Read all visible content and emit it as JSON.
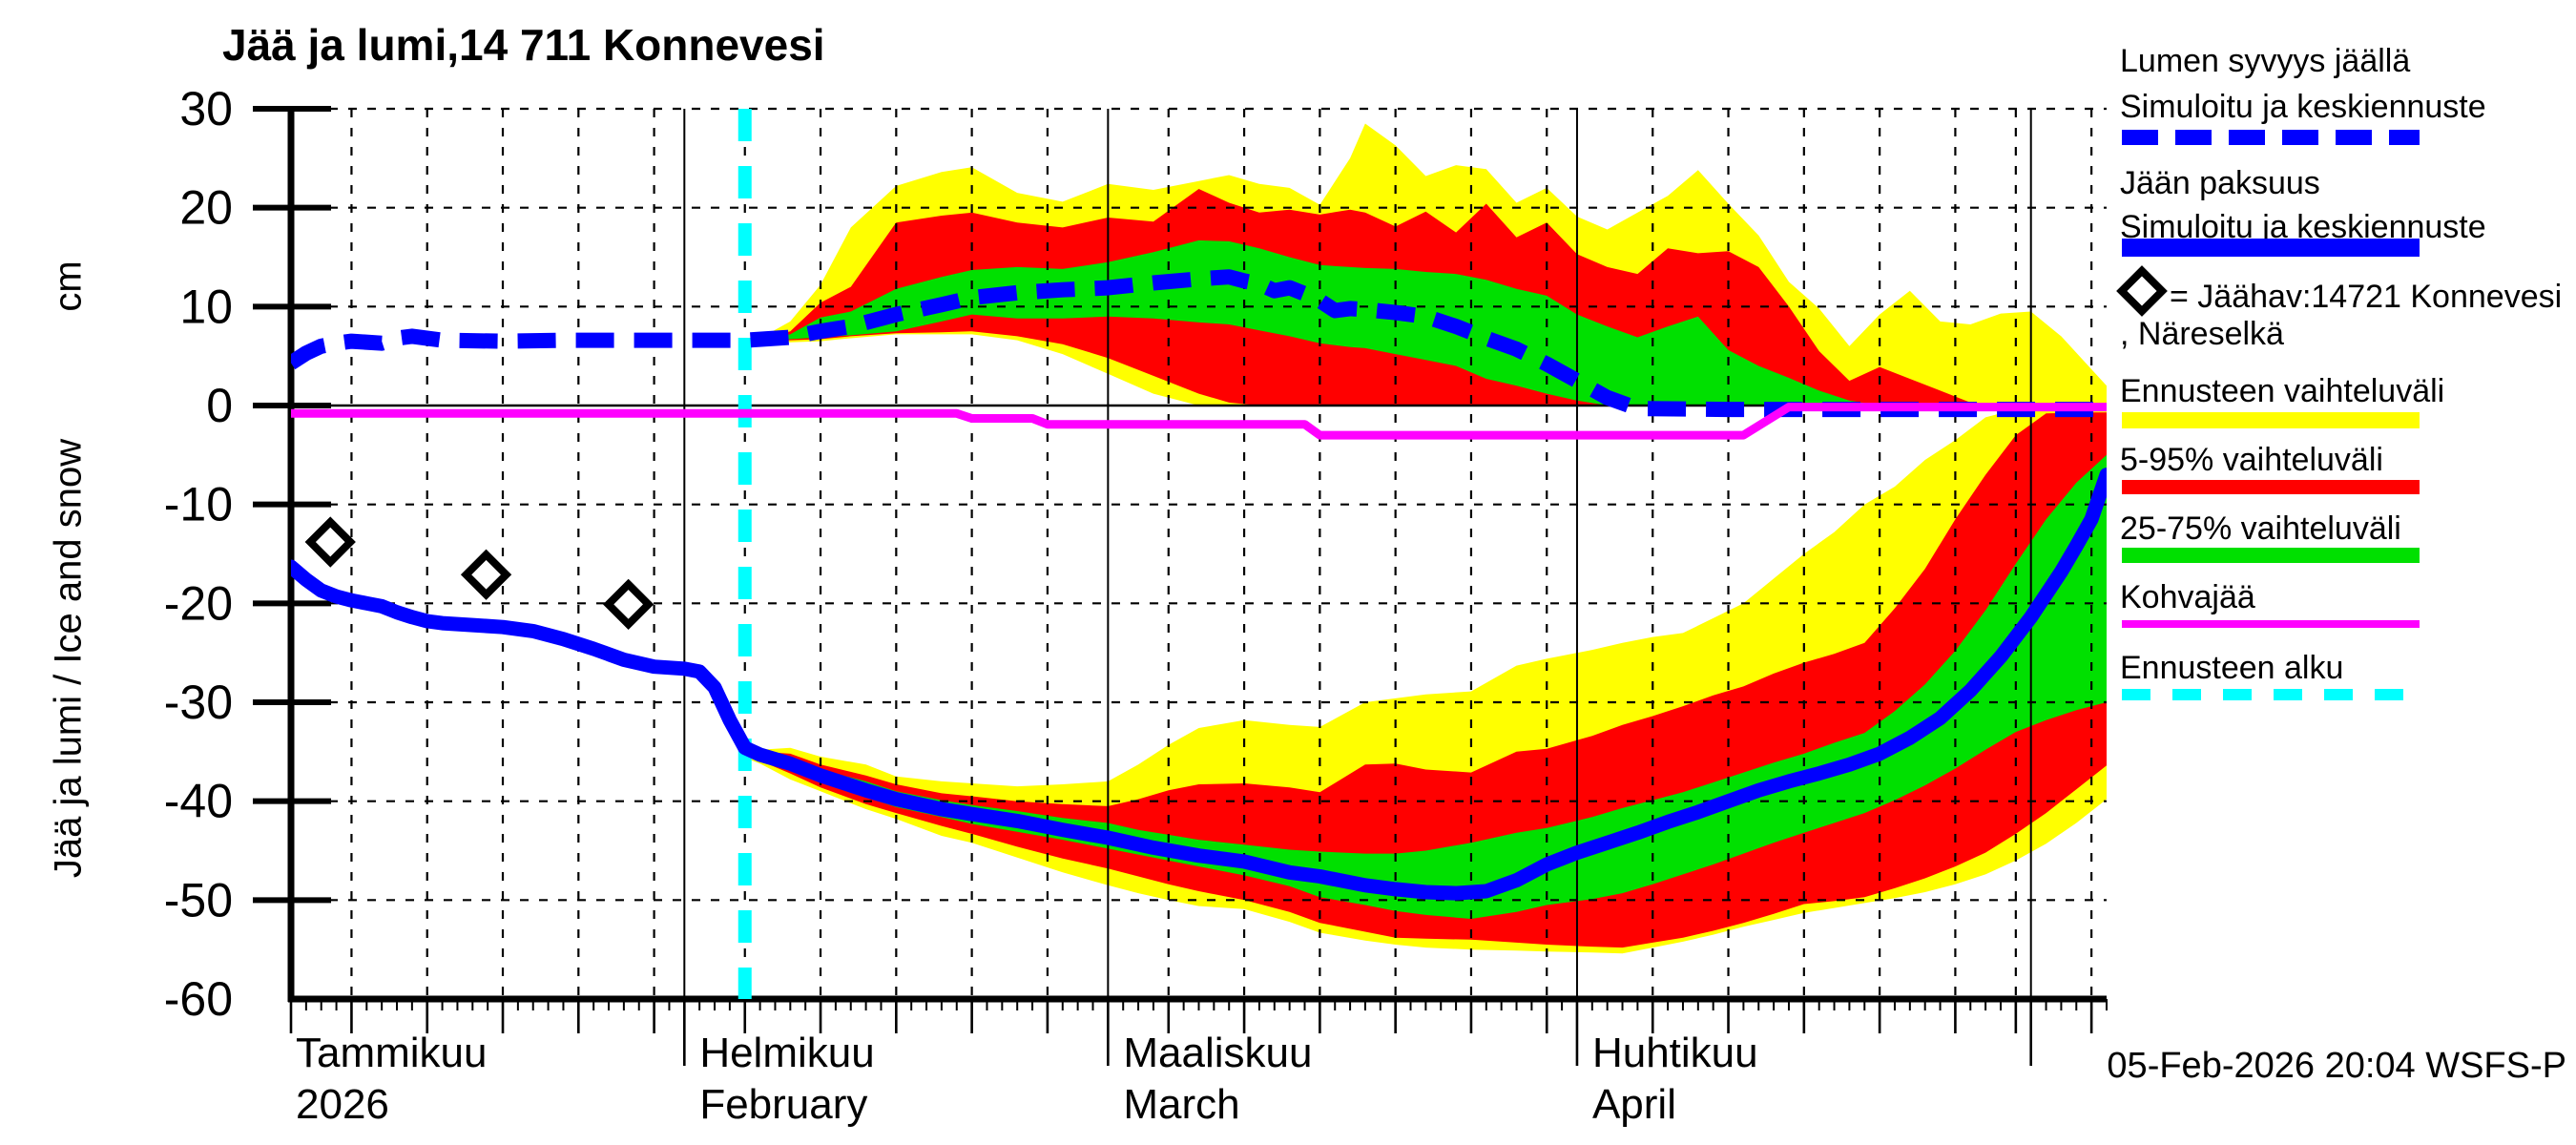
{
  "title": "Jää ja lumi,14 711 Konnevesi",
  "timestamp": "05-Feb-2026 20:04 WSFS-P",
  "y_axis": {
    "label_main": "Jää ja lumi / Ice and snow",
    "label_unit": "cm",
    "ticks": [
      30,
      20,
      10,
      0,
      -10,
      -20,
      -30,
      -40,
      -50,
      -60
    ]
  },
  "x_axis": {
    "months": [
      {
        "name": "Tammikuu",
        "sub": "2026",
        "day": 0.3
      },
      {
        "name": "Helmikuu",
        "sub": "February",
        "day": 26
      },
      {
        "name": "Maaliskuu",
        "sub": "March",
        "day": 54
      },
      {
        "name": "Huhtikuu",
        "sub": "April",
        "day": 85
      }
    ]
  },
  "legend": {
    "items": [
      {
        "line1": "Lumen syvyys jäällä",
        "line2": "Simuloitu ja keskiennuste",
        "swatch": "blue-dashed"
      },
      {
        "line1": "Jään paksuus",
        "line2": "Simuloitu ja keskiennuste",
        "swatch": "blue-solid"
      },
      {
        "line1": "= Jäähav:14721 Konnevesi",
        "line2": ", Näreselkä",
        "swatch": "diamond"
      },
      {
        "line1": "Ennusteen vaihteluväli",
        "swatch": "yellow"
      },
      {
        "line1": "5-95% vaihteluväli",
        "swatch": "red"
      },
      {
        "line1": "25-75% vaihteluväli",
        "swatch": "green"
      },
      {
        "line1": "Kohvajää",
        "swatch": "magenta"
      },
      {
        "line1": "Ennusteen alku",
        "swatch": "cyan-dashed"
      }
    ]
  },
  "chart_data": {
    "type": "area",
    "subtype": "ensemble-fan-with-lines",
    "x_unit": "days since 06-Jan-2026 (day 30 = 05-Feb-2026 forecast start, day 120 = 06-May-2026)",
    "ylabel": "Jää ja lumi / Ice and snow (cm)",
    "ylim": [
      -60,
      30
    ],
    "forecast_start_day": 30,
    "colors": {
      "median": "#0000ff",
      "range": "#ffff00",
      "p5_95": "#ff0000",
      "p25_75": "#00e000",
      "kohvajaa": "#ff00ff",
      "forecast_start": "#00ffff",
      "axis": "#000000"
    },
    "grid": {
      "dashed_vertical_days": [
        4,
        9,
        14,
        19,
        24,
        30,
        35,
        40,
        45,
        50,
        58,
        63,
        68,
        73,
        78,
        83,
        90,
        95,
        100,
        105,
        110,
        114,
        119
      ],
      "month_vertical_days": [
        26,
        54,
        85,
        115
      ],
      "dashed_horizontal_values": [
        30,
        20,
        10,
        -10,
        -20,
        -30,
        -40,
        -50
      ]
    },
    "series": {
      "snow_median": [
        [
          0,
          4.3
        ],
        [
          1,
          5.3
        ],
        [
          2,
          6.0
        ],
        [
          3,
          6.3
        ],
        [
          4,
          6.5
        ],
        [
          6,
          6.3
        ],
        [
          7,
          6.8
        ],
        [
          8,
          7.0
        ],
        [
          10,
          6.6
        ],
        [
          14,
          6.5
        ],
        [
          18,
          6.6
        ],
        [
          22,
          6.6
        ],
        [
          26,
          6.6
        ],
        [
          30,
          6.6
        ],
        [
          33,
          6.9
        ],
        [
          35,
          7.5
        ],
        [
          37,
          8.0
        ],
        [
          40,
          9.2
        ],
        [
          43,
          10.2
        ],
        [
          45,
          10.9
        ],
        [
          48,
          11.4
        ],
        [
          51,
          11.7
        ],
        [
          54,
          11.9
        ],
        [
          57,
          12.4
        ],
        [
          60,
          12.8
        ],
        [
          62,
          13.0
        ],
        [
          63,
          12.6
        ],
        [
          64,
          12.3
        ],
        [
          65,
          11.6
        ],
        [
          66,
          11.9
        ],
        [
          67,
          11.3
        ],
        [
          68,
          10.6
        ],
        [
          69,
          9.6
        ],
        [
          70,
          9.8
        ],
        [
          71,
          9.7
        ],
        [
          73,
          9.4
        ],
        [
          75,
          9.0
        ],
        [
          77,
          8.0
        ],
        [
          79,
          6.8
        ],
        [
          81,
          5.7
        ],
        [
          83,
          4.2
        ],
        [
          85,
          2.5
        ],
        [
          87,
          0.8
        ],
        [
          89,
          -0.3
        ],
        [
          95,
          -0.4
        ],
        [
          120,
          -0.4
        ]
      ],
      "ice_median": [
        [
          0,
          -16.3
        ],
        [
          1,
          -17.6
        ],
        [
          2,
          -18.7
        ],
        [
          3,
          -19.3
        ],
        [
          4,
          -19.7
        ],
        [
          5,
          -20.0
        ],
        [
          6,
          -20.3
        ],
        [
          7,
          -20.9
        ],
        [
          8,
          -21.4
        ],
        [
          9,
          -21.8
        ],
        [
          10,
          -22.0
        ],
        [
          12,
          -22.2
        ],
        [
          14,
          -22.4
        ],
        [
          16,
          -22.8
        ],
        [
          18,
          -23.6
        ],
        [
          20,
          -24.6
        ],
        [
          22,
          -25.7
        ],
        [
          24,
          -26.4
        ],
        [
          26,
          -26.6
        ],
        [
          27,
          -26.9
        ],
        [
          28,
          -28.5
        ],
        [
          29,
          -31.8
        ],
        [
          30,
          -34.6
        ],
        [
          31,
          -35.3
        ],
        [
          33,
          -36.2
        ],
        [
          35,
          -37.4
        ],
        [
          38,
          -38.9
        ],
        [
          40,
          -39.8
        ],
        [
          43,
          -40.8
        ],
        [
          45,
          -41.3
        ],
        [
          48,
          -42.0
        ],
        [
          51,
          -42.9
        ],
        [
          54,
          -43.7
        ],
        [
          57,
          -44.7
        ],
        [
          60,
          -45.5
        ],
        [
          63,
          -46.1
        ],
        [
          66,
          -47.2
        ],
        [
          68,
          -47.6
        ],
        [
          71,
          -48.5
        ],
        [
          73,
          -48.9
        ],
        [
          75,
          -49.2
        ],
        [
          77,
          -49.3
        ],
        [
          79,
          -49.1
        ],
        [
          81,
          -48.0
        ],
        [
          83,
          -46.4
        ],
        [
          85,
          -45.2
        ],
        [
          87,
          -44.2
        ],
        [
          89,
          -43.2
        ],
        [
          91,
          -42.1
        ],
        [
          93,
          -41.1
        ],
        [
          95,
          -40.0
        ],
        [
          97,
          -38.9
        ],
        [
          99,
          -38.0
        ],
        [
          101,
          -37.2
        ],
        [
          103,
          -36.3
        ],
        [
          105,
          -35.2
        ],
        [
          107,
          -33.6
        ],
        [
          109,
          -31.6
        ],
        [
          111,
          -28.8
        ],
        [
          113,
          -25.4
        ],
        [
          115,
          -21.4
        ],
        [
          117,
          -16.8
        ],
        [
          118,
          -14.2
        ],
        [
          119,
          -11.5
        ],
        [
          120,
          -7.0
        ]
      ],
      "kohvajaa": [
        [
          0,
          -0.8
        ],
        [
          44,
          -0.8
        ],
        [
          45,
          -1.3
        ],
        [
          49,
          -1.3
        ],
        [
          50,
          -1.9
        ],
        [
          67,
          -1.9
        ],
        [
          68,
          -3.0
        ],
        [
          96,
          -3.0
        ],
        [
          99,
          -0.15
        ],
        [
          120,
          -0.15
        ]
      ],
      "observations": [
        {
          "day": 2.6,
          "value": -13.8
        },
        {
          "day": 12.9,
          "value": -17.1
        },
        {
          "day": 22.3,
          "value": -20.1
        }
      ],
      "snow_band": {
        "days": [
          30,
          31,
          33,
          35,
          37,
          40,
          43,
          45,
          48,
          51,
          54,
          57,
          60,
          62,
          64,
          66,
          68,
          70,
          71,
          73,
          75,
          77,
          79,
          81,
          83,
          85,
          87,
          89,
          91,
          93,
          95,
          97,
          99,
          101,
          103,
          105,
          107,
          109,
          111,
          113,
          115,
          117,
          120
        ],
        "yellow_top": [
          6.6,
          6.8,
          8.5,
          12.2,
          18.0,
          22.2,
          23.6,
          24.1,
          21.5,
          20.6,
          22.4,
          21.8,
          22.7,
          23.3,
          22.4,
          22.0,
          20.3,
          25.0,
          28.5,
          26.3,
          23.2,
          24.3,
          23.9,
          20.5,
          22.0,
          19.1,
          17.8,
          19.5,
          21.2,
          23.8,
          20.4,
          17.2,
          12.5,
          9.8,
          6.0,
          9.2,
          11.6,
          8.5,
          8.2,
          9.3,
          9.5,
          7.0,
          2.0
        ],
        "red_top": [
          6.6,
          6.7,
          7.5,
          10.4,
          12.0,
          18.5,
          19.2,
          19.5,
          18.5,
          18.0,
          19.0,
          18.6,
          21.9,
          20.5,
          19.5,
          19.8,
          19.3,
          19.8,
          19.5,
          18.1,
          19.6,
          17.5,
          20.4,
          17.0,
          18.5,
          15.3,
          14.0,
          13.3,
          15.9,
          15.4,
          15.6,
          14.0,
          10.0,
          5.5,
          2.5,
          3.9,
          2.7,
          1.5,
          0.3,
          0,
          0,
          0,
          0
        ],
        "green_top": [
          6.6,
          6.7,
          7.2,
          8.9,
          9.5,
          11.8,
          13.0,
          13.7,
          14.0,
          13.8,
          14.5,
          15.5,
          16.7,
          16.6,
          15.9,
          15.0,
          14.2,
          14.0,
          13.9,
          13.8,
          13.5,
          13.3,
          12.7,
          11.8,
          11.1,
          9.2,
          8.0,
          6.9,
          8.0,
          9.0,
          5.6,
          4.0,
          2.8,
          1.5,
          0.5,
          0,
          0,
          0,
          0,
          0,
          0,
          0,
          0
        ],
        "green_bot": [
          6.6,
          6.5,
          6.7,
          6.9,
          7.1,
          7.5,
          8.5,
          9.2,
          8.8,
          8.8,
          9.0,
          8.8,
          8.4,
          8.2,
          7.6,
          7.0,
          6.3,
          5.9,
          5.8,
          5.2,
          4.6,
          4.0,
          2.7,
          2.0,
          1.2,
          0.5,
          0,
          0,
          0,
          0,
          0,
          0,
          0,
          0,
          0,
          0,
          0,
          0,
          0,
          0,
          0,
          0,
          0
        ],
        "red_bot": [
          6.5,
          6.4,
          6.6,
          6.7,
          7.0,
          7.3,
          7.4,
          7.5,
          7.0,
          6.2,
          4.8,
          3.0,
          1.2,
          0.3,
          0,
          0,
          0,
          0,
          0,
          0,
          0,
          0,
          0,
          0,
          0,
          0,
          0,
          0,
          0,
          0,
          0,
          0,
          0,
          0,
          0,
          0,
          0,
          0,
          0,
          0,
          0,
          0,
          0
        ],
        "yellow_bot": [
          6.5,
          6.3,
          6.4,
          6.5,
          6.8,
          7.2,
          7.2,
          7.2,
          6.6,
          5.2,
          3.2,
          1.2,
          0,
          0,
          0,
          0,
          0,
          0,
          0,
          0,
          0,
          0,
          0,
          0,
          0,
          0,
          0,
          0,
          0,
          0,
          0,
          0,
          0,
          0,
          0,
          0,
          0,
          0,
          0,
          0,
          0,
          0,
          0
        ]
      },
      "ice_band": {
        "days": [
          30,
          31,
          33,
          35,
          38,
          40,
          43,
          45,
          48,
          51,
          54,
          56,
          58,
          60,
          63,
          66,
          68,
          71,
          73,
          75,
          78,
          81,
          83,
          86,
          88,
          90,
          92,
          94,
          96,
          98,
          100,
          102,
          104,
          106,
          108,
          110,
          112,
          114,
          116,
          118,
          120
        ],
        "yellow_top": [
          -34.5,
          -34.8,
          -34.6,
          -35.5,
          -36.3,
          -37.5,
          -38.0,
          -38.2,
          -38.5,
          -38.3,
          -38.0,
          -36.3,
          -34.3,
          -32.6,
          -31.8,
          -32.3,
          -32.5,
          -30.0,
          -29.6,
          -29.2,
          -28.9,
          -26.3,
          -25.6,
          -24.7,
          -24.0,
          -23.4,
          -23.0,
          -21.5,
          -20.0,
          -17.5,
          -15.0,
          -12.8,
          -10.0,
          -8.2,
          -5.5,
          -3.5,
          -1.2,
          -0.4,
          -0.4,
          -0.4,
          -0.4
        ],
        "red_top": [
          -34.7,
          -35.0,
          -35.2,
          -36.3,
          -37.4,
          -38.3,
          -39.2,
          -39.5,
          -40.0,
          -40.3,
          -40.5,
          -39.8,
          -38.9,
          -38.3,
          -38.2,
          -38.6,
          -39.1,
          -36.3,
          -36.2,
          -36.8,
          -37.1,
          -35.0,
          -34.7,
          -33.4,
          -32.3,
          -31.4,
          -30.4,
          -29.3,
          -28.4,
          -27.1,
          -26.0,
          -25.1,
          -24.0,
          -20.5,
          -16.5,
          -11.5,
          -7.0,
          -3.0,
          -0.8,
          -0.7,
          -0.7
        ],
        "green_top": [
          -34.9,
          -35.1,
          -35.6,
          -36.8,
          -38.0,
          -39.0,
          -39.9,
          -40.4,
          -41.0,
          -41.7,
          -42.2,
          -42.9,
          -43.4,
          -43.9,
          -44.4,
          -44.9,
          -45.1,
          -45.3,
          -45.3,
          -45.0,
          -44.2,
          -43.2,
          -42.7,
          -41.6,
          -40.7,
          -39.9,
          -39.1,
          -38.1,
          -37.1,
          -36.1,
          -35.2,
          -34.1,
          -33.1,
          -30.9,
          -28.2,
          -24.8,
          -20.7,
          -16.0,
          -11.5,
          -7.8,
          -5.0
        ],
        "green_bot": [
          -35.2,
          -35.6,
          -36.6,
          -38.0,
          -39.6,
          -40.6,
          -41.6,
          -42.3,
          -43.1,
          -43.9,
          -44.8,
          -45.4,
          -46.0,
          -46.6,
          -47.5,
          -48.6,
          -49.7,
          -50.5,
          -51.1,
          -51.5,
          -51.9,
          -51.2,
          -50.5,
          -49.9,
          -49.3,
          -48.4,
          -47.4,
          -46.4,
          -45.3,
          -44.2,
          -43.2,
          -42.2,
          -41.2,
          -39.9,
          -38.4,
          -36.7,
          -34.8,
          -33.0,
          -31.8,
          -30.8,
          -30.0
        ],
        "red_bot": [
          -35.4,
          -35.9,
          -37.2,
          -38.6,
          -40.3,
          -41.2,
          -42.5,
          -43.3,
          -44.6,
          -45.8,
          -46.8,
          -47.6,
          -48.4,
          -49.1,
          -50.0,
          -51.2,
          -52.3,
          -53.2,
          -53.8,
          -53.9,
          -54.0,
          -54.3,
          -54.5,
          -54.7,
          -54.8,
          -54.3,
          -53.8,
          -53.1,
          -52.3,
          -51.4,
          -50.4,
          -50.1,
          -49.7,
          -48.8,
          -47.8,
          -46.6,
          -45.2,
          -43.3,
          -41.2,
          -38.8,
          -36.4
        ],
        "yellow_bot": [
          -35.6,
          -36.2,
          -37.8,
          -39.0,
          -40.8,
          -41.8,
          -43.5,
          -44.2,
          -45.7,
          -47.2,
          -48.5,
          -49.3,
          -50.0,
          -50.6,
          -50.9,
          -52.2,
          -53.3,
          -54.1,
          -54.5,
          -54.8,
          -55.0,
          -55.1,
          -55.2,
          -55.3,
          -55.4,
          -54.8,
          -54.2,
          -53.5,
          -52.7,
          -52.0,
          -51.3,
          -50.8,
          -50.3,
          -49.8,
          -49.2,
          -48.4,
          -47.4,
          -46.0,
          -44.3,
          -42.2,
          -39.8
        ]
      }
    }
  }
}
